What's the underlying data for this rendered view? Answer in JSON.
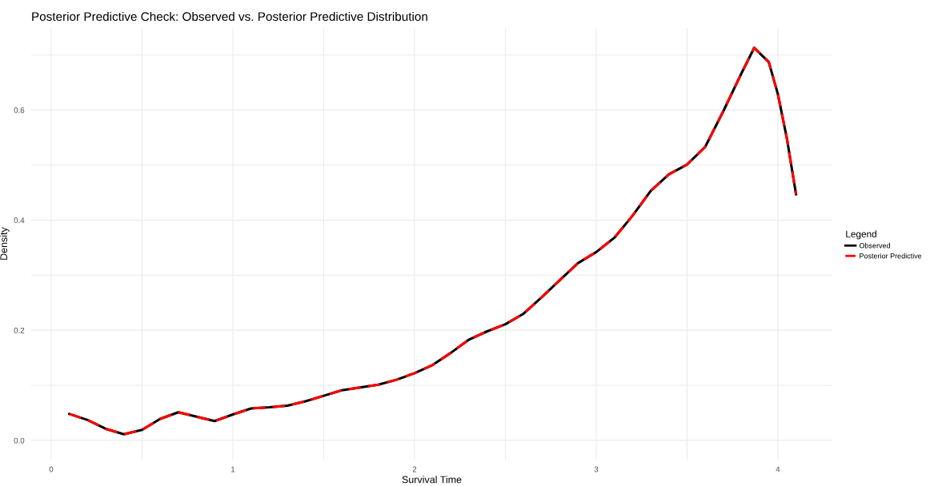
{
  "chart_data": {
    "type": "line",
    "title": "Posterior Predictive Check: Observed vs. Posterior Predictive Distribution",
    "xlabel": "Survival Time",
    "ylabel": "Density",
    "legend_title": "Legend",
    "x": [
      0.1,
      0.2,
      0.3,
      0.4,
      0.5,
      0.6,
      0.7,
      0.8,
      0.9,
      1.0,
      1.1,
      1.2,
      1.3,
      1.4,
      1.5,
      1.6,
      1.7,
      1.8,
      1.9,
      2.0,
      2.1,
      2.2,
      2.3,
      2.4,
      2.5,
      2.6,
      2.7,
      2.8,
      2.9,
      3.0,
      3.1,
      3.2,
      3.3,
      3.4,
      3.5,
      3.6,
      3.7,
      3.8,
      3.87,
      3.95,
      4.0,
      4.05,
      4.1
    ],
    "series": [
      {
        "name": "Observed",
        "color": "#000000",
        "line_style": "solid",
        "values": [
          0.048,
          0.037,
          0.021,
          0.011,
          0.019,
          0.039,
          0.051,
          0.043,
          0.035,
          0.047,
          0.058,
          0.06,
          0.063,
          0.071,
          0.081,
          0.091,
          0.096,
          0.101,
          0.11,
          0.122,
          0.137,
          0.159,
          0.183,
          0.198,
          0.211,
          0.23,
          0.26,
          0.291,
          0.322,
          0.342,
          0.368,
          0.408,
          0.453,
          0.483,
          0.501,
          0.533,
          0.598,
          0.667,
          0.713,
          0.687,
          0.629,
          0.548,
          0.447
        ]
      },
      {
        "name": "Posterior Predictive",
        "color": "#ff0000",
        "line_style": "dashed",
        "values": [
          0.048,
          0.037,
          0.021,
          0.011,
          0.019,
          0.039,
          0.051,
          0.043,
          0.035,
          0.047,
          0.058,
          0.06,
          0.063,
          0.071,
          0.081,
          0.091,
          0.096,
          0.101,
          0.11,
          0.122,
          0.137,
          0.159,
          0.183,
          0.198,
          0.211,
          0.23,
          0.26,
          0.291,
          0.322,
          0.342,
          0.368,
          0.408,
          0.453,
          0.483,
          0.501,
          0.533,
          0.598,
          0.667,
          0.713,
          0.687,
          0.629,
          0.548,
          0.447
        ]
      }
    ],
    "xlim": [
      -0.11,
      4.3
    ],
    "ylim": [
      -0.035,
      0.749
    ],
    "xticks": [
      0,
      {
        "value": 0.5,
        "label": null
      },
      1,
      {
        "value": 1.5,
        "label": null
      },
      2,
      {
        "value": 2.5,
        "label": null
      },
      3,
      {
        "value": 3.5,
        "label": null
      },
      4
    ],
    "yticks": [
      {
        "value": 0,
        "label": "0.0"
      },
      {
        "value": 0.1,
        "label": null
      },
      {
        "value": 0.2,
        "label": "0.2"
      },
      {
        "value": 0.3,
        "label": null
      },
      {
        "value": 0.4,
        "label": "0.4"
      },
      {
        "value": 0.5,
        "label": null
      },
      {
        "value": 0.6,
        "label": "0.6"
      },
      {
        "value": 0.7,
        "label": null
      }
    ],
    "grid": true,
    "legend": "right",
    "marker": "none"
  }
}
